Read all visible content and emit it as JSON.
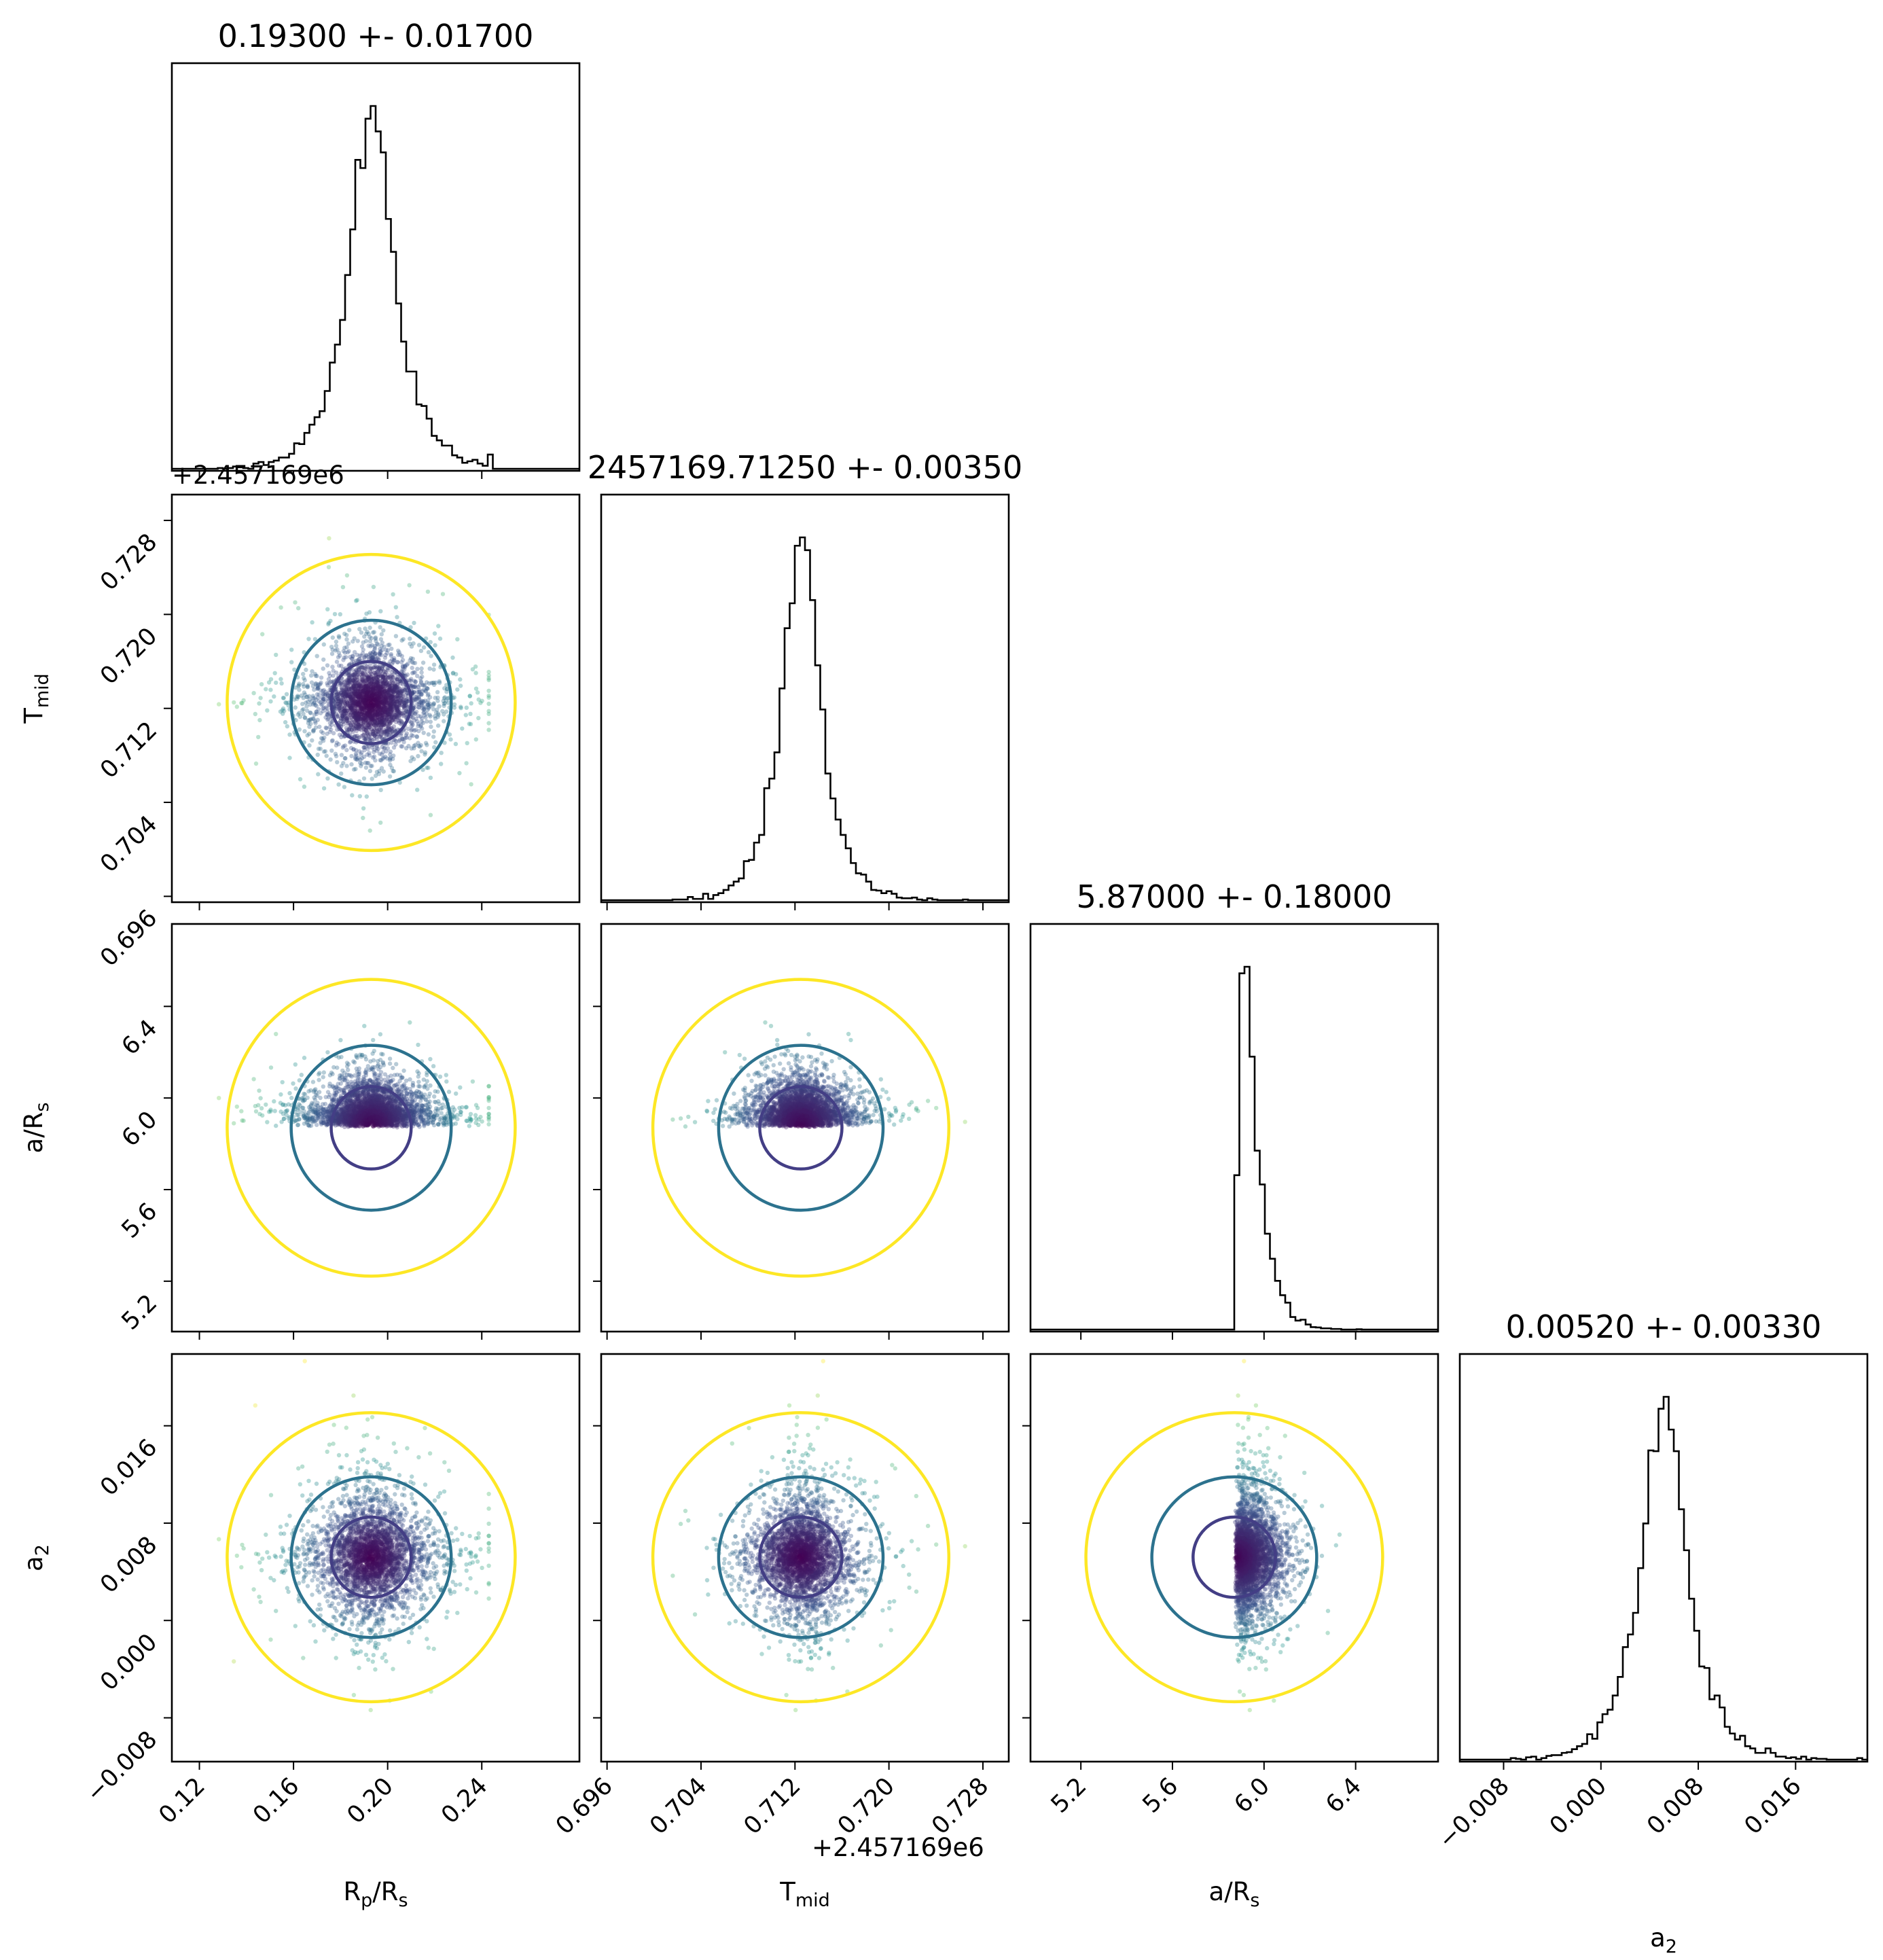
{
  "chart_data": {
    "type": "corner",
    "parameters": [
      {
        "key": "rp",
        "title": "0.19300 +- 0.01700",
        "label_main": "R",
        "label_sub1": "p",
        "label_mid": "/R",
        "label_sub2": "s",
        "range": [
          0.1083,
          0.2815
        ],
        "ticks": [
          0.12,
          0.16,
          0.2,
          0.24
        ],
        "tick_labels": [
          "0.12",
          "0.16",
          "0.20",
          "0.24"
        ],
        "mean": 0.193,
        "std": 0.017,
        "offset_text": ""
      },
      {
        "key": "tmid",
        "title": "2457169.71250 +- 0.00350",
        "label_main": "T",
        "label_sub1": "mid",
        "label_mid": "",
        "label_sub2": "",
        "range": [
          0.6955,
          0.7302
        ],
        "ticks": [
          0.696,
          0.704,
          0.712,
          0.72,
          0.728
        ],
        "tick_labels": [
          "0.696",
          "0.704",
          "0.712",
          "0.720",
          "0.728"
        ],
        "mean": 0.7125,
        "std": 0.0035,
        "offset_text": "+2.457169e6"
      },
      {
        "key": "aRs",
        "title": "5.87000 +- 0.18000",
        "label_main": "a/R",
        "label_sub1": "",
        "label_mid": "",
        "label_sub2": "s",
        "range": [
          4.98,
          6.76
        ],
        "ticks": [
          5.2,
          5.6,
          6.0,
          6.4
        ],
        "tick_labels": [
          "5.2",
          "5.6",
          "6.0",
          "6.4"
        ],
        "mean": 5.87,
        "std": 0.18,
        "offset_text": ""
      },
      {
        "key": "a2",
        "title": "0.00520 +- 0.00330",
        "label_main": "a",
        "label_sub1": "",
        "label_mid": "",
        "label_sub2": "2",
        "range": [
          -0.0116,
          0.0219
        ],
        "ticks": [
          -0.008,
          0.0,
          0.008,
          0.016
        ],
        "tick_labels": [
          "−0.008",
          "0.000",
          "0.008",
          "0.016"
        ],
        "mean": 0.0052,
        "std": 0.0033,
        "offset_text": ""
      }
    ],
    "contour_colors": {
      "inner": "#433e85",
      "middle": "#2c728e",
      "outer": "#fde725"
    },
    "scatter_colormap": "viridis",
    "histogram_color": "#000000"
  }
}
